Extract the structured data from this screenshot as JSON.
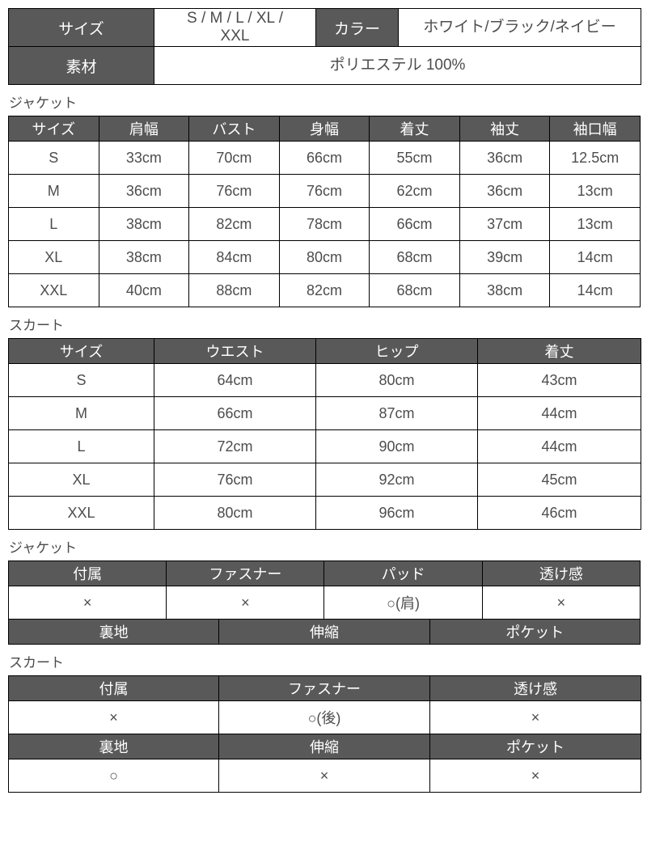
{
  "colors": {
    "header_bg": "#595959",
    "header_text": "#ffffff",
    "body_text": "#4d4d4d",
    "border": "#000000",
    "page_bg": "#ffffff"
  },
  "summary": {
    "size_label": "サイズ",
    "size_value": "S / M / L / XL /\nXXL",
    "color_label": "カラー",
    "color_value": "ホワイト/ブラック/ネイビー",
    "material_label": "素材",
    "material_value": "ポリエステル 100%"
  },
  "jacket_size": {
    "section_label": "ジャケット",
    "columns": [
      "サイズ",
      "肩幅",
      "バスト",
      "身幅",
      "着丈",
      "袖丈",
      "袖口幅"
    ],
    "rows": [
      [
        "S",
        "33cm",
        "70cm",
        "66cm",
        "55cm",
        "36cm",
        "12.5cm"
      ],
      [
        "M",
        "36cm",
        "76cm",
        "76cm",
        "62cm",
        "36cm",
        "13cm"
      ],
      [
        "L",
        "38cm",
        "82cm",
        "78cm",
        "66cm",
        "37cm",
        "13cm"
      ],
      [
        "XL",
        "38cm",
        "84cm",
        "80cm",
        "68cm",
        "39cm",
        "14cm"
      ],
      [
        "XXL",
        "40cm",
        "88cm",
        "82cm",
        "68cm",
        "38cm",
        "14cm"
      ]
    ]
  },
  "skirt_size": {
    "section_label": "スカート",
    "columns": [
      "サイズ",
      "ウエスト",
      "ヒップ",
      "着丈"
    ],
    "rows": [
      [
        "S",
        "64cm",
        "80cm",
        "43cm"
      ],
      [
        "M",
        "66cm",
        "87cm",
        "44cm"
      ],
      [
        "L",
        "72cm",
        "90cm",
        "44cm"
      ],
      [
        "XL",
        "76cm",
        "92cm",
        "45cm"
      ],
      [
        "XXL",
        "80cm",
        "96cm",
        "46cm"
      ]
    ]
  },
  "jacket_details": {
    "section_label": "ジャケット",
    "header_row_1": [
      "付属",
      "ファスナー",
      "パッド",
      "透け感"
    ],
    "value_row_1": [
      "×",
      "×",
      "○(肩)",
      "×"
    ],
    "header_row_2": [
      "裏地",
      "伸縮",
      "ポケット"
    ]
  },
  "skirt_details": {
    "section_label": "スカート",
    "header_row_1": [
      "付属",
      "ファスナー",
      "透け感"
    ],
    "value_row_1": [
      "×",
      "○(後)",
      "×"
    ],
    "header_row_2": [
      "裏地",
      "伸縮",
      "ポケット"
    ],
    "value_row_2": [
      "○",
      "×",
      "×"
    ]
  }
}
